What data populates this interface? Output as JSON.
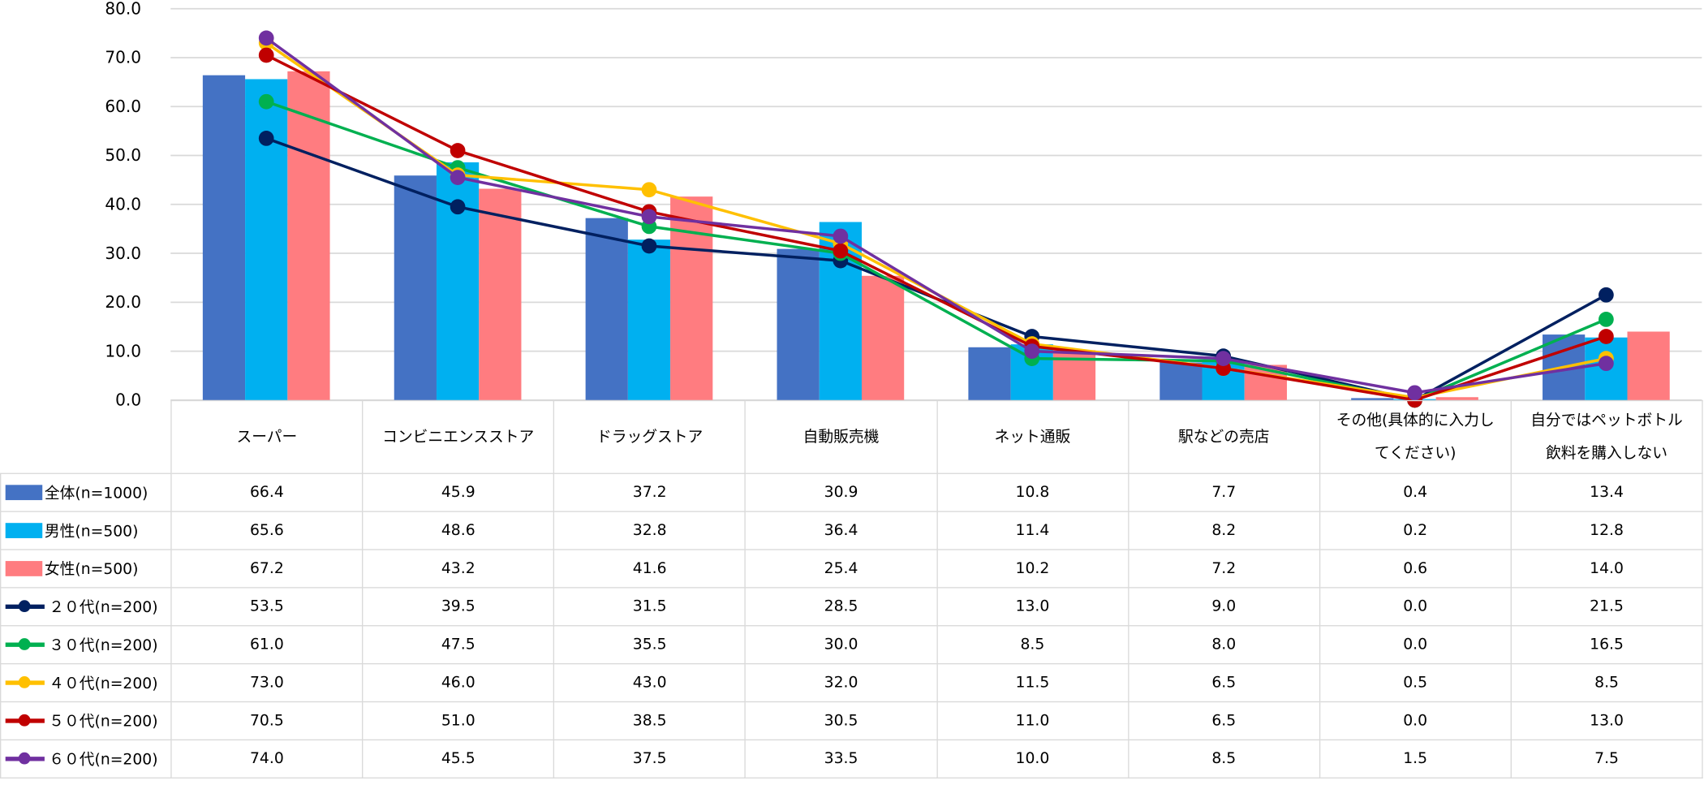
{
  "chart_data": {
    "type": "bar+line",
    "categories": [
      "スーパー",
      "コンビニエンスストア",
      "ドラッグストア",
      "自動販売機",
      "ネット通販",
      "駅などの売店",
      "その他(具体的に入力してください)",
      "自分ではペットボトル飲料を購入しない"
    ],
    "category_lines": [
      [
        "スーパー"
      ],
      [
        "コンビニエンスストア"
      ],
      [
        "ドラッグストア"
      ],
      [
        "自動販売機"
      ],
      [
        "ネット通販"
      ],
      [
        "駅などの売店"
      ],
      [
        "その他(具体的に入力し",
        "てください)"
      ],
      [
        "自分ではペットボトル",
        "飲料を購入しない"
      ]
    ],
    "ylim": [
      0,
      80
    ],
    "yticks": [
      "0.0",
      "10.0",
      "20.0",
      "30.0",
      "40.0",
      "50.0",
      "60.0",
      "70.0",
      "80.0"
    ],
    "grid": true,
    "legend": "data-table-left",
    "series": [
      {
        "name": "全体(n=1000)",
        "kind": "bar",
        "color": "#4472c4",
        "values": [
          66.4,
          45.9,
          37.2,
          30.9,
          10.8,
          7.7,
          0.4,
          13.4
        ]
      },
      {
        "name": "男性(n=500)",
        "kind": "bar",
        "color": "#00b0f0",
        "values": [
          65.6,
          48.6,
          32.8,
          36.4,
          11.4,
          8.2,
          0.2,
          12.8
        ]
      },
      {
        "name": "女性(n=500)",
        "kind": "bar",
        "color": "#ff7c80",
        "values": [
          67.2,
          43.2,
          41.6,
          25.4,
          10.2,
          7.2,
          0.6,
          14.0
        ]
      },
      {
        "name": "２０代(n=200)",
        "kind": "line",
        "color": "#002060",
        "values": [
          53.5,
          39.5,
          31.5,
          28.5,
          13.0,
          9.0,
          0.0,
          21.5
        ]
      },
      {
        "name": "３０代(n=200)",
        "kind": "line",
        "color": "#00b050",
        "values": [
          61.0,
          47.5,
          35.5,
          30.0,
          8.5,
          8.0,
          0.0,
          16.5
        ]
      },
      {
        "name": "４０代(n=200)",
        "kind": "line",
        "color": "#ffc000",
        "values": [
          73.0,
          46.0,
          43.0,
          32.0,
          11.5,
          6.5,
          0.5,
          8.5
        ]
      },
      {
        "name": "５０代(n=200)",
        "kind": "line",
        "color": "#c00000",
        "values": [
          70.5,
          51.0,
          38.5,
          30.5,
          11.0,
          6.5,
          0.0,
          13.0
        ]
      },
      {
        "name": "６０代(n=200)",
        "kind": "line",
        "color": "#7030a0",
        "values": [
          74.0,
          45.5,
          37.5,
          33.5,
          10.0,
          8.5,
          1.5,
          7.5
        ]
      }
    ]
  }
}
